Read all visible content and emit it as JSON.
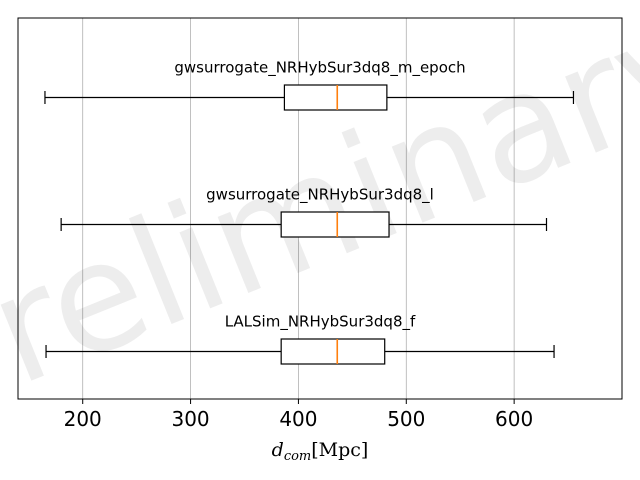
{
  "chart_data": {
    "type": "boxplot",
    "orientation": "horizontal",
    "xlabel": "d_com [Mpc]",
    "xlabel_parts": {
      "symbol": "d",
      "subscript": "com",
      "unit": "[Mpc]"
    },
    "xlim": [
      140,
      700
    ],
    "xticks": [
      200,
      300,
      400,
      500,
      600
    ],
    "grid": "x",
    "watermark": "Preliminary",
    "colors": {
      "box": "#000000",
      "median": "#ff7f0e",
      "grid": "#b0b0b0"
    },
    "series": [
      {
        "name": "gwsurrogate_NRHybSur3dq8_m_epoch",
        "whisker_low": 165,
        "q1": 387,
        "median": 436,
        "q3": 482,
        "whisker_high": 655
      },
      {
        "name": "gwsurrogate_NRHybSur3dq8_l",
        "whisker_low": 180,
        "q1": 384,
        "median": 436,
        "q3": 484,
        "whisker_high": 630
      },
      {
        "name": "LALSim_NRHybSur3dq8_f",
        "whisker_low": 166,
        "q1": 384,
        "median": 436,
        "q3": 480,
        "whisker_high": 637
      }
    ]
  }
}
